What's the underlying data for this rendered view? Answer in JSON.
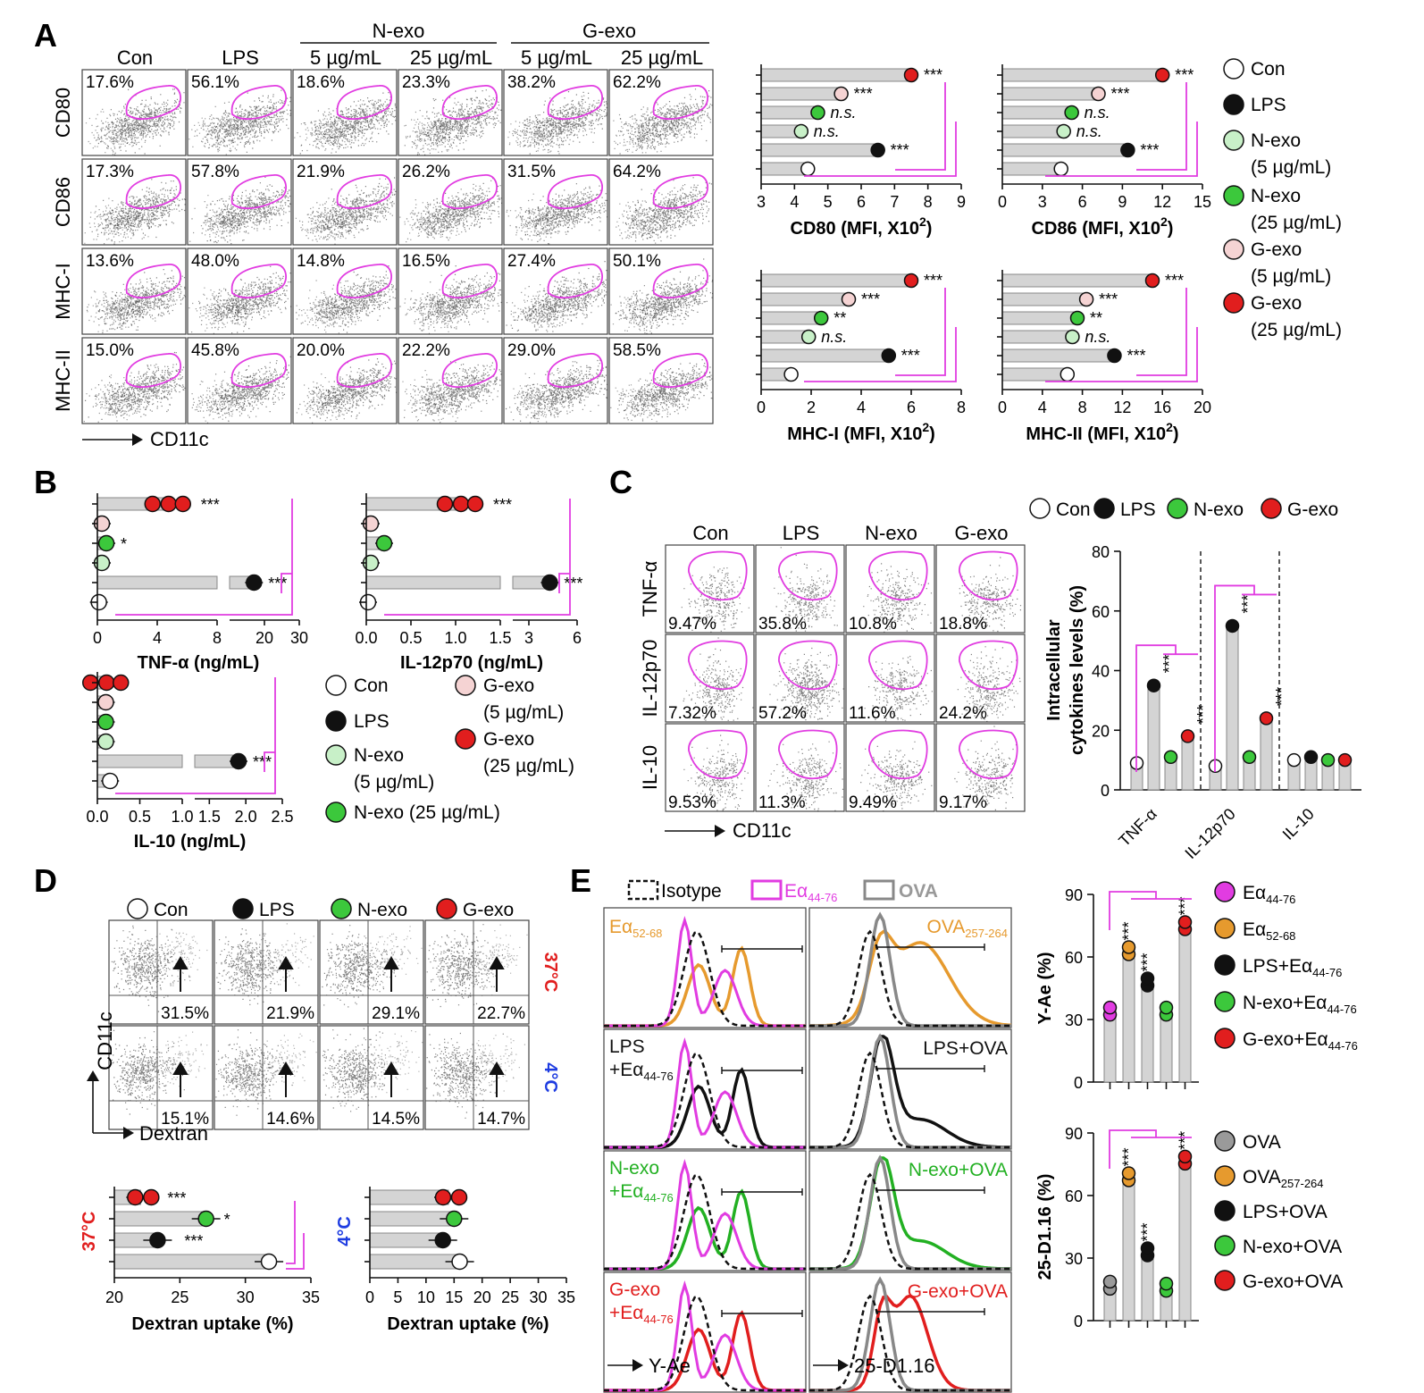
{
  "panelA": {
    "label": "A",
    "columns": [
      "Con",
      "LPS",
      "5 µg/mL",
      "25 µg/mL",
      "5 µg/mL",
      "25 µg/mL"
    ],
    "groups": [
      "N-exo",
      "G-exo"
    ],
    "rows": [
      "CD80",
      "CD86",
      "MHC-I",
      "MHC-II"
    ],
    "percents": [
      [
        "17.6%",
        "56.1%",
        "18.6%",
        "23.3%",
        "38.2%",
        "62.2%"
      ],
      [
        "17.3%",
        "57.8%",
        "21.9%",
        "26.2%",
        "31.5%",
        "64.2%"
      ],
      [
        "13.6%",
        "48.0%",
        "14.8%",
        "16.5%",
        "27.4%",
        "50.1%"
      ],
      [
        "15.0%",
        "45.8%",
        "20.0%",
        "22.2%",
        "29.0%",
        "58.5%"
      ]
    ],
    "xaxis": "CD11c",
    "legend": [
      {
        "label": "Con",
        "color": "#ffffff"
      },
      {
        "label": "LPS",
        "color": "#111111"
      },
      {
        "label": "N-exo",
        "sub": "(5 µg/mL)",
        "color": "#c8f0c8"
      },
      {
        "label": "N-exo",
        "sub": "(25 µg/mL)",
        "color": "#3cc83c"
      },
      {
        "label": "G-exo",
        "sub": "(5 µg/mL)",
        "color": "#f5d3d3"
      },
      {
        "label": "G-exo",
        "sub": "(25 µg/mL)",
        "color": "#e11e1e"
      }
    ],
    "mfi_charts": [
      {
        "title": "CD80 (MFI, X10",
        "sup": "2",
        ")": ")",
        "ticks": [
          "3",
          "4",
          "5",
          "6",
          "7",
          "8",
          "9"
        ],
        "xmin": 3,
        "xmax": 9,
        "values": [
          7.5,
          5.4,
          4.7,
          4.2,
          6.5,
          4.4
        ],
        "stars": [
          "***",
          "***",
          "n.s.",
          "n.s.",
          "***",
          ""
        ]
      },
      {
        "title": "CD86 (MFI, X10",
        "sup": "2",
        "ticks": [
          "0",
          "3",
          "6",
          "9",
          "12",
          "15"
        ],
        "xmin": 0,
        "xmax": 15,
        "values": [
          12.0,
          7.2,
          5.2,
          4.6,
          9.4,
          4.4
        ],
        "stars": [
          "***",
          "***",
          "n.s.",
          "n.s.",
          "***",
          ""
        ]
      },
      {
        "title": "MHC-I (MFI, X10",
        "sup": "2",
        "ticks": [
          "0",
          "2",
          "4",
          "6",
          "8"
        ],
        "xmin": 0,
        "xmax": 8,
        "values": [
          6.0,
          3.5,
          2.4,
          1.9,
          5.1,
          1.2
        ],
        "stars": [
          "***",
          "***",
          "**",
          "n.s.",
          "***",
          ""
        ]
      },
      {
        "title": "MHC-II (MFI, X10",
        "sup": "2",
        "ticks": [
          "0",
          "4",
          "8",
          "12",
          "16",
          "20"
        ],
        "xmin": 0,
        "xmax": 20,
        "values": [
          15.0,
          8.4,
          7.5,
          7.0,
          11.2,
          6.5
        ],
        "stars": [
          "***",
          "***",
          "**",
          "n.s.",
          "***",
          ""
        ]
      }
    ]
  },
  "panelB": {
    "label": "B",
    "tnf": {
      "title": "TNF-α (ng/mL)",
      "ticks_left": [
        "0",
        "4",
        "8"
      ],
      "ticks_right": [
        "20",
        "30"
      ],
      "values": [
        5.0,
        0.3,
        0.6,
        0.3,
        17,
        0.1
      ],
      "stars": [
        "***",
        "",
        "*",
        "",
        "***",
        ""
      ]
    },
    "il12": {
      "title": "IL-12p70 (ng/mL)",
      "ticks_left": [
        "0.0",
        "0.5",
        "1.0",
        "1.5"
      ],
      "ticks_right": [
        "3",
        "6"
      ],
      "values": [
        1.1,
        0.05,
        0.2,
        0.05,
        4.3,
        0.02
      ],
      "stars": [
        "***",
        "",
        "",
        "",
        "***",
        ""
      ]
    },
    "il10": {
      "title": "IL-10 (ng/mL)",
      "ticks_left": [
        "0.0",
        "0.5",
        "1.0"
      ],
      "ticks_right": [
        "1.5",
        "2.0",
        "2.5"
      ],
      "values": [
        0.15,
        0.1,
        0.1,
        0.1,
        1.9,
        0.15
      ],
      "stars": [
        "",
        "",
        "",
        "",
        "***",
        ""
      ]
    },
    "legend": [
      {
        "label": "Con",
        "color": "#ffffff"
      },
      {
        "label": "LPS",
        "color": "#111111"
      },
      {
        "label": "N-exo",
        "sub": "(5 µg/mL)",
        "color": "#c8f0c8"
      },
      {
        "label": "N-exo (25 µg/mL)",
        "color": "#3cc83c"
      },
      {
        "label": "G-exo",
        "sub": "(5 µg/mL)",
        "color": "#f5d3d3"
      },
      {
        "label": "G-exo",
        "sub": "(25 µg/mL)",
        "color": "#e11e1e"
      }
    ]
  },
  "panelC": {
    "label": "C",
    "columns": [
      "Con",
      "LPS",
      "N-exo",
      "G-exo"
    ],
    "rows": [
      "TNF-α",
      "IL-12p70",
      "IL-10"
    ],
    "percents": [
      [
        "9.47%",
        "35.8%",
        "10.8%",
        "18.8%"
      ],
      [
        "7.32%",
        "57.2%",
        "11.6%",
        "24.2%"
      ],
      [
        "9.53%",
        "11.3%",
        "9.49%",
        "9.17%"
      ]
    ],
    "xaxis": "CD11c",
    "legend": [
      {
        "label": "Con",
        "color": "#ffffff"
      },
      {
        "label": "LPS",
        "color": "#111111"
      },
      {
        "label": "N-exo",
        "color": "#3cc83c"
      },
      {
        "label": "G-exo",
        "color": "#e11e1e"
      }
    ],
    "chart": {
      "ylabel1": "Intracellular",
      "ylabel2": "cytokines levels (%)",
      "yticks": [
        "0",
        "20",
        "40",
        "60",
        "80"
      ],
      "categories": [
        "TNF-α",
        "IL-12p70",
        "IL-10"
      ],
      "values": [
        [
          9,
          35,
          11,
          18
        ],
        [
          8,
          55,
          11,
          24
        ],
        [
          10,
          11,
          10,
          10
        ]
      ],
      "stars": [
        [
          "",
          "***",
          "",
          "***"
        ],
        [
          "",
          "***",
          "",
          "***"
        ],
        [
          "",
          "",
          "",
          ""
        ]
      ]
    }
  },
  "panelD": {
    "label": "D",
    "legend": [
      {
        "label": "Con",
        "color": "#ffffff"
      },
      {
        "label": "LPS",
        "color": "#111111"
      },
      {
        "label": "N-exo",
        "color": "#3cc83c"
      },
      {
        "label": "G-exo",
        "color": "#e11e1e"
      }
    ],
    "temps": [
      "37°C",
      "4°C"
    ],
    "percents": [
      [
        "31.5%",
        "21.9%",
        "29.1%",
        "22.7%"
      ],
      [
        "15.1%",
        "14.6%",
        "14.5%",
        "14.7%"
      ]
    ],
    "yaxis": "CD11c",
    "xaxis": "Dextran",
    "chart37": {
      "ylabel": "37°C",
      "title": "Dextran uptake (%)",
      "ticks": [
        "20",
        "25",
        "30",
        "35"
      ],
      "values": [
        22,
        27,
        23.3,
        31.8
      ],
      "stars": [
        "***",
        "*",
        "***",
        ""
      ]
    },
    "chart4": {
      "ylabel": "4°C",
      "title": "Dextran uptake (%)",
      "ticks": [
        "0",
        "5",
        "10",
        "15",
        "20",
        "25",
        "30",
        "35"
      ],
      "values": [
        14,
        15,
        13,
        16
      ],
      "stars": [
        "",
        "",
        "",
        ""
      ]
    }
  },
  "panelE": {
    "label": "E",
    "legend_top": [
      "Isotype",
      "Eα",
      "OVA"
    ],
    "ea_sub": "44-76",
    "left_labels": [
      {
        "main": "Eα",
        "sub": "52-68",
        "color": "#e69a2e"
      },
      {
        "main": "LPS",
        "main2": "+Eα",
        "sub": "44-76",
        "color": "#111111"
      },
      {
        "main": "N-exo",
        "main2": "+Eα",
        "sub": "44-76",
        "color": "#22b022"
      },
      {
        "main": "G-exo",
        "main2": "+Eα",
        "sub": "44-76",
        "color": "#e11e1e"
      }
    ],
    "right_labels": [
      {
        "main": "OVA",
        "sub": "257-264",
        "color": "#e69a2e"
      },
      {
        "main": "LPS+OVA",
        "color": "#111111"
      },
      {
        "main": "N-exo+OVA",
        "color": "#22b022"
      },
      {
        "main": "G-exo+OVA",
        "color": "#e11e1e"
      }
    ],
    "xaxis_left": "Y-Ae",
    "xaxis_right": "25-D1.16",
    "chart_yae": {
      "ylabel": "Y-Ae (%)",
      "yticks": [
        "0",
        "30",
        "60",
        "90"
      ],
      "values": [
        34,
        63,
        48,
        34,
        75
      ],
      "stars": [
        "",
        "***",
        "***",
        "",
        "***"
      ],
      "colors": [
        "#e13ce1",
        "#e69a2e",
        "#111111",
        "#3cc83c",
        "#e11e1e"
      ]
    },
    "chart_25d": {
      "ylabel": "25-D1.16 (%)",
      "yticks": [
        "0",
        "30",
        "60",
        "90"
      ],
      "values": [
        17,
        69,
        33,
        16,
        77
      ],
      "stars": [
        "",
        "***",
        "***",
        "",
        "***"
      ],
      "colors": [
        "#9a9a9a",
        "#e69a2e",
        "#111111",
        "#3cc83c",
        "#e11e1e"
      ]
    },
    "legend_yae": [
      {
        "main": "Eα",
        "sub": "44-76",
        "color": "#e13ce1"
      },
      {
        "main": "Eα",
        "sub": "52-68",
        "color": "#e69a2e"
      },
      {
        "main": "LPS+Eα",
        "sub": "44-76",
        "color": "#111111"
      },
      {
        "main": "N-exo+Eα",
        "sub": "44-76",
        "color": "#3cc83c"
      },
      {
        "main": "G-exo+Eα",
        "sub": "44-76",
        "color": "#e11e1e"
      }
    ],
    "legend_25d": [
      {
        "main": "OVA",
        "color": "#9a9a9a"
      },
      {
        "main": "OVA",
        "sub": "257-264",
        "color": "#e69a2e"
      },
      {
        "main": "LPS+OVA",
        "color": "#111111"
      },
      {
        "main": "N-exo+OVA",
        "color": "#3cc83c"
      },
      {
        "main": "G-exo+OVA",
        "color": "#e11e1e"
      }
    ]
  },
  "chart_data": [
    {
      "type": "bar",
      "title": "",
      "xlabel": "CD80 (MFI, X10²)",
      "categories": [
        "G-exo (25 µg/mL)",
        "G-exo (5 µg/mL)",
        "N-exo (25 µg/mL)",
        "N-exo (5 µg/mL)",
        "LPS",
        "Con"
      ],
      "values": [
        7.5,
        5.4,
        4.7,
        4.2,
        6.5,
        4.4
      ],
      "xlim": [
        3,
        9
      ]
    },
    {
      "type": "bar",
      "title": "",
      "xlabel": "CD86 (MFI, X10²)",
      "categories": [
        "G-exo (25 µg/mL)",
        "G-exo (5 µg/mL)",
        "N-exo (25 µg/mL)",
        "N-exo (5 µg/mL)",
        "LPS",
        "Con"
      ],
      "values": [
        12.0,
        7.2,
        5.2,
        4.6,
        9.4,
        4.4
      ],
      "xlim": [
        0,
        15
      ]
    },
    {
      "type": "bar",
      "title": "",
      "xlabel": "MHC-I (MFI, X10²)",
      "categories": [
        "G-exo (25 µg/mL)",
        "G-exo (5 µg/mL)",
        "N-exo (25 µg/mL)",
        "N-exo (5 µg/mL)",
        "LPS",
        "Con"
      ],
      "values": [
        6.0,
        3.5,
        2.4,
        1.9,
        5.1,
        1.2
      ],
      "xlim": [
        0,
        8
      ]
    },
    {
      "type": "bar",
      "title": "",
      "xlabel": "MHC-II (MFI, X10²)",
      "categories": [
        "G-exo (25 µg/mL)",
        "G-exo (5 µg/mL)",
        "N-exo (25 µg/mL)",
        "N-exo (5 µg/mL)",
        "LPS",
        "Con"
      ],
      "values": [
        15.0,
        8.4,
        7.5,
        7.0,
        11.2,
        6.5
      ],
      "xlim": [
        0,
        20
      ]
    },
    {
      "type": "bar",
      "title": "",
      "xlabel": "TNF-α (ng/mL)",
      "categories": [
        "G-exo (25 µg/mL)",
        "G-exo (5 µg/mL)",
        "N-exo (25 µg/mL)",
        "N-exo (5 µg/mL)",
        "LPS",
        "Con"
      ],
      "values": [
        5.0,
        0.3,
        0.6,
        0.3,
        17,
        0.1
      ]
    },
    {
      "type": "bar",
      "title": "",
      "xlabel": "IL-12p70 (ng/mL)",
      "categories": [
        "G-exo (25 µg/mL)",
        "G-exo (5 µg/mL)",
        "N-exo (25 µg/mL)",
        "N-exo (5 µg/mL)",
        "LPS",
        "Con"
      ],
      "values": [
        1.1,
        0.05,
        0.2,
        0.05,
        4.3,
        0.02
      ]
    },
    {
      "type": "bar",
      "title": "",
      "xlabel": "IL-10 (ng/mL)",
      "categories": [
        "G-exo (25 µg/mL)",
        "G-exo (5 µg/mL)",
        "N-exo (25 µg/mL)",
        "N-exo (5 µg/mL)",
        "LPS",
        "Con"
      ],
      "values": [
        0.15,
        0.1,
        0.1,
        0.1,
        1.9,
        0.15
      ]
    },
    {
      "type": "bar",
      "title": "",
      "ylabel": "Intracellular cytokines levels (%)",
      "categories": [
        "TNF-α",
        "IL-12p70",
        "IL-10"
      ],
      "series": [
        {
          "name": "Con",
          "values": [
            9,
            8,
            10
          ]
        },
        {
          "name": "LPS",
          "values": [
            35,
            55,
            11
          ]
        },
        {
          "name": "N-exo",
          "values": [
            11,
            11,
            10
          ]
        },
        {
          "name": "G-exo",
          "values": [
            18,
            24,
            10
          ]
        }
      ],
      "ylim": [
        0,
        80
      ]
    },
    {
      "type": "bar",
      "title": "",
      "xlabel": "Dextran uptake (%)",
      "ylabel": "37°C",
      "categories": [
        "G-exo",
        "N-exo",
        "LPS",
        "Con"
      ],
      "values": [
        22,
        27,
        23.3,
        31.8
      ],
      "xlim": [
        20,
        35
      ]
    },
    {
      "type": "bar",
      "title": "",
      "xlabel": "Dextran uptake (%)",
      "ylabel": "4°C",
      "categories": [
        "G-exo",
        "N-exo",
        "LPS",
        "Con"
      ],
      "values": [
        14,
        15,
        13,
        16
      ],
      "xlim": [
        0,
        35
      ]
    },
    {
      "type": "bar",
      "title": "",
      "ylabel": "Y-Ae (%)",
      "categories": [
        "Eα44-76",
        "Eα52-68",
        "LPS+Eα44-76",
        "N-exo+Eα44-76",
        "G-exo+Eα44-76"
      ],
      "values": [
        34,
        63,
        48,
        34,
        75
      ],
      "ylim": [
        0,
        90
      ]
    },
    {
      "type": "bar",
      "title": "",
      "ylabel": "25-D1.16 (%)",
      "categories": [
        "OVA",
        "OVA257-264",
        "LPS+OVA",
        "N-exo+OVA",
        "G-exo+OVA"
      ],
      "values": [
        17,
        69,
        33,
        16,
        77
      ],
      "ylim": [
        0,
        90
      ]
    }
  ]
}
